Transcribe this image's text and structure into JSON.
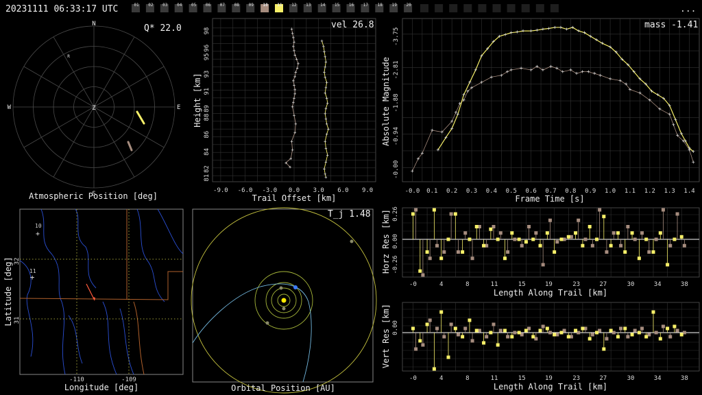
{
  "header": {
    "datetime": "20231111 06:33:17 UTC",
    "menu_label": "...",
    "cam_labels": [
      "01",
      "02",
      "03",
      "04",
      "05",
      "06",
      "07",
      "08",
      "09",
      "10",
      "11",
      "12",
      "13",
      "14",
      "15",
      "16",
      "17",
      "18",
      "19",
      "20"
    ],
    "active_cams": [
      "10",
      "11"
    ],
    "empty_slots": 10
  },
  "colors": {
    "cam10": "#a68c7e",
    "cam11": "#f7f069",
    "grid": "#333333",
    "orbit_inner": "#a8b83a",
    "orbit_outer": "#c7c43f",
    "comet_orbit": "#73b8df",
    "sun": "#ffea00",
    "earth": "#3a79ff"
  },
  "sky": {
    "quality_label": "Q* 22.0",
    "compass": [
      "N",
      "E",
      "S",
      "W",
      "Z"
    ],
    "station_marker": "R",
    "xlabel": "Atmospheric Position [deg]"
  },
  "trail": {
    "vel_label": "vel 26.8",
    "xlabel": "Trail Offset [km]",
    "ylabel": "Height [km]",
    "xticks": [
      "-9.0",
      "-6.0",
      "-3.0",
      "0.0",
      "3.0",
      "6.0",
      "9.0"
    ],
    "yticks": [
      "81",
      "82",
      "84",
      "86",
      "88",
      "89",
      "91",
      "93",
      "95",
      "96",
      "98"
    ],
    "cam10_x": [
      -0.3,
      -0.2,
      -0.1,
      0.0,
      -0.1,
      0.0,
      0.1,
      0.3,
      0.5,
      0.4,
      0.2,
      0.1,
      -0.1,
      0.0,
      0.1,
      0.1,
      0.0,
      -0.1,
      -0.2,
      0.0,
      0.2,
      0.1,
      -0.3,
      -0.2,
      -0.4,
      -1.0,
      -0.5
    ],
    "cam10_h": [
      98.0,
      97.5,
      97.0,
      96.5,
      96.0,
      95.5,
      95.0,
      94.5,
      94.0,
      93.5,
      93.0,
      92.5,
      92.0,
      91.5,
      91.0,
      90.5,
      90.0,
      89.5,
      89.0,
      88.0,
      87.0,
      86.0,
      85.0,
      84.0,
      83.0,
      82.5,
      82.0
    ],
    "cam11_x": [
      3.4,
      3.6,
      3.7,
      3.8,
      3.9,
      3.8,
      3.7,
      3.8,
      4.0,
      3.9,
      3.8,
      4.0,
      4.1,
      3.9,
      3.8,
      3.9,
      4.0,
      4.2,
      4.0,
      3.8,
      3.9,
      4.1,
      3.9,
      3.7,
      3.8,
      3.9
    ],
    "cam11_h": [
      96.6,
      96.0,
      95.4,
      94.8,
      94.2,
      93.6,
      93.0,
      92.4,
      91.8,
      91.2,
      90.6,
      90.0,
      89.4,
      88.8,
      88.2,
      87.6,
      87.0,
      86.4,
      85.8,
      85.0,
      84.2,
      83.4,
      82.6,
      81.8,
      81.2,
      80.8
    ]
  },
  "lightcurve": {
    "mass_label": "mass -1.41",
    "xlabel": "Frame Time [s]",
    "ylabel": "Absolute Magnitude",
    "xticks": [
      "-0.0",
      "0.1",
      "0.2",
      "0.3",
      "0.4",
      "0.5",
      "0.6",
      "0.7",
      "0.8",
      "0.9",
      "1.0",
      "1.1",
      "1.2",
      "1.3",
      "1.4"
    ],
    "yticks": [
      "-3.75",
      "-2.81",
      "-1.88",
      "-0.94",
      "-0.00"
    ],
    "cam10": [
      [
        0.0,
        -0.1
      ],
      [
        0.03,
        0.25
      ],
      [
        0.05,
        0.4
      ],
      [
        0.1,
        1.05
      ],
      [
        0.15,
        1.0
      ],
      [
        0.2,
        1.3
      ],
      [
        0.22,
        1.55
      ],
      [
        0.24,
        1.8
      ],
      [
        0.26,
        1.9
      ],
      [
        0.28,
        2.15
      ],
      [
        0.3,
        2.25
      ],
      [
        0.35,
        2.4
      ],
      [
        0.4,
        2.55
      ],
      [
        0.45,
        2.6
      ],
      [
        0.48,
        2.7
      ],
      [
        0.5,
        2.75
      ],
      [
        0.55,
        2.8
      ],
      [
        0.6,
        2.75
      ],
      [
        0.63,
        2.85
      ],
      [
        0.66,
        2.75
      ],
      [
        0.7,
        2.85
      ],
      [
        0.73,
        2.8
      ],
      [
        0.76,
        2.7
      ],
      [
        0.8,
        2.75
      ],
      [
        0.83,
        2.65
      ],
      [
        0.86,
        2.7
      ],
      [
        0.89,
        2.7
      ],
      [
        0.92,
        2.65
      ],
      [
        0.95,
        2.6
      ],
      [
        1.0,
        2.5
      ],
      [
        1.05,
        2.45
      ],
      [
        1.08,
        2.35
      ],
      [
        1.1,
        2.2
      ],
      [
        1.15,
        2.1
      ],
      [
        1.2,
        1.9
      ],
      [
        1.25,
        1.65
      ],
      [
        1.3,
        1.5
      ],
      [
        1.32,
        1.2
      ],
      [
        1.34,
        0.9
      ],
      [
        1.37,
        0.75
      ],
      [
        1.4,
        0.5
      ],
      [
        1.42,
        0.15
      ]
    ],
    "cam11": [
      [
        0.13,
        0.5
      ],
      [
        0.17,
        0.85
      ],
      [
        0.2,
        1.1
      ],
      [
        0.23,
        1.5
      ],
      [
        0.26,
        2.05
      ],
      [
        0.29,
        2.4
      ],
      [
        0.32,
        2.75
      ],
      [
        0.35,
        3.15
      ],
      [
        0.38,
        3.35
      ],
      [
        0.41,
        3.55
      ],
      [
        0.44,
        3.7
      ],
      [
        0.47,
        3.75
      ],
      [
        0.5,
        3.8
      ],
      [
        0.53,
        3.82
      ],
      [
        0.56,
        3.85
      ],
      [
        0.6,
        3.85
      ],
      [
        0.63,
        3.87
      ],
      [
        0.66,
        3.9
      ],
      [
        0.69,
        3.92
      ],
      [
        0.72,
        3.95
      ],
      [
        0.75,
        3.95
      ],
      [
        0.78,
        3.9
      ],
      [
        0.81,
        3.95
      ],
      [
        0.84,
        3.85
      ],
      [
        0.87,
        3.8
      ],
      [
        0.9,
        3.7
      ],
      [
        0.93,
        3.6
      ],
      [
        0.96,
        3.5
      ],
      [
        1.0,
        3.4
      ],
      [
        1.03,
        3.25
      ],
      [
        1.06,
        3.05
      ],
      [
        1.09,
        2.9
      ],
      [
        1.12,
        2.7
      ],
      [
        1.15,
        2.5
      ],
      [
        1.18,
        2.35
      ],
      [
        1.21,
        2.15
      ],
      [
        1.24,
        2.05
      ],
      [
        1.27,
        1.95
      ],
      [
        1.3,
        1.75
      ],
      [
        1.33,
        1.35
      ],
      [
        1.36,
        0.95
      ],
      [
        1.38,
        0.75
      ],
      [
        1.4,
        0.55
      ],
      [
        1.42,
        0.45
      ]
    ]
  },
  "horz_res": {
    "xlabel": "Length Along Trail [km]",
    "ylabel": "Horz Res [km]",
    "xticks": [
      "-0",
      "4",
      "8",
      "11",
      "15",
      "19",
      "23",
      "27",
      "30",
      "34",
      "38"
    ],
    "yticks": [
      "0.26",
      "0.00",
      "-0.26"
    ],
    "cam10": [
      [
        0,
        0.25
      ],
      [
        1,
        -0.4
      ],
      [
        2,
        -0.15
      ],
      [
        3,
        -0.05
      ],
      [
        4,
        -0.1
      ],
      [
        5,
        0.2
      ],
      [
        6,
        -0.1
      ],
      [
        7,
        0.05
      ],
      [
        8,
        -0.15
      ],
      [
        9,
        0.1
      ],
      [
        10,
        -0.05
      ],
      [
        11,
        0.1
      ],
      [
        12,
        0.05
      ],
      [
        13,
        -0.1
      ],
      [
        14,
        0.0
      ],
      [
        15,
        -0.05
      ],
      [
        16,
        0.1
      ],
      [
        17,
        0.05
      ],
      [
        18,
        -0.2
      ],
      [
        19,
        0.15
      ],
      [
        20,
        -0.02
      ],
      [
        21,
        0.0
      ],
      [
        22,
        0.02
      ],
      [
        23,
        0.15
      ],
      [
        24,
        0.0
      ],
      [
        25,
        -0.05
      ],
      [
        26,
        0.25
      ],
      [
        27,
        -0.1
      ],
      [
        28,
        0.05
      ],
      [
        29,
        -0.05
      ],
      [
        30,
        0.1
      ],
      [
        31,
        0.0
      ],
      [
        32,
        0.05
      ],
      [
        33,
        -0.1
      ],
      [
        34,
        0.0
      ],
      [
        35,
        0.3
      ],
      [
        36,
        -0.05
      ],
      [
        37,
        0.2
      ],
      [
        38,
        -0.05
      ]
    ],
    "cam11": [
      [
        0,
        0.2
      ],
      [
        1,
        -0.25
      ],
      [
        2,
        -0.1
      ],
      [
        3,
        0.28
      ],
      [
        4,
        -0.15
      ],
      [
        5,
        0.0
      ],
      [
        6,
        0.2
      ],
      [
        7,
        -0.1
      ],
      [
        8,
        0.0
      ],
      [
        9,
        0.1
      ],
      [
        10,
        -0.05
      ],
      [
        11,
        0.08
      ],
      [
        12,
        0.0
      ],
      [
        13,
        -0.15
      ],
      [
        14,
        0.05
      ],
      [
        15,
        0.0
      ],
      [
        16,
        -0.02
      ],
      [
        17,
        0.0
      ],
      [
        18,
        -0.05
      ],
      [
        19,
        0.05
      ],
      [
        20,
        -0.1
      ],
      [
        21,
        0.0
      ],
      [
        22,
        0.02
      ],
      [
        23,
        0.05
      ],
      [
        24,
        -0.05
      ],
      [
        25,
        0.1
      ],
      [
        26,
        0.0
      ],
      [
        27,
        0.18
      ],
      [
        28,
        -0.05
      ],
      [
        29,
        0.05
      ],
      [
        30,
        -0.1
      ],
      [
        31,
        0.05
      ],
      [
        32,
        -0.15
      ],
      [
        33,
        0.0
      ],
      [
        34,
        -0.1
      ],
      [
        35,
        0.05
      ],
      [
        36,
        -0.2
      ],
      [
        37,
        0.0
      ],
      [
        38,
        0.02
      ]
    ]
  },
  "vert_res": {
    "xlabel": "Length Along Trail [km]",
    "ylabel": "Vert Res [km]",
    "xticks": [
      "-0",
      "4",
      "8",
      "11",
      "15",
      "19",
      "23",
      "27",
      "30",
      "34",
      "38"
    ],
    "yticks": [
      "0.00"
    ],
    "cam10": [
      [
        0,
        -0.4
      ],
      [
        1,
        -0.3
      ],
      [
        2,
        0.3
      ],
      [
        3,
        0.1
      ],
      [
        4,
        -0.1
      ],
      [
        5,
        0.2
      ],
      [
        6,
        -0.05
      ],
      [
        7,
        0.1
      ],
      [
        8,
        -0.2
      ],
      [
        9,
        0.05
      ],
      [
        10,
        -0.1
      ],
      [
        11,
        0.2
      ],
      [
        12,
        0.05
      ],
      [
        13,
        -0.1
      ],
      [
        14,
        0.0
      ],
      [
        15,
        -0.05
      ],
      [
        16,
        0.1
      ],
      [
        17,
        -0.15
      ],
      [
        18,
        0.15
      ],
      [
        19,
        0.0
      ],
      [
        20,
        -0.05
      ],
      [
        21,
        0.05
      ],
      [
        22,
        -0.1
      ],
      [
        23,
        0.0
      ],
      [
        24,
        0.1
      ],
      [
        25,
        -0.05
      ],
      [
        26,
        0.05
      ],
      [
        27,
        -0.15
      ],
      [
        28,
        0.0
      ],
      [
        29,
        0.1
      ],
      [
        30,
        -0.1
      ],
      [
        31,
        0.05
      ],
      [
        32,
        0.1
      ],
      [
        33,
        -0.05
      ],
      [
        34,
        0.0
      ],
      [
        35,
        0.15
      ],
      [
        36,
        -0.1
      ],
      [
        37,
        0.05
      ],
      [
        38,
        0.0
      ]
    ],
    "cam11": [
      [
        0,
        0.1
      ],
      [
        1,
        -0.2
      ],
      [
        2,
        0.2
      ],
      [
        3,
        -0.9
      ],
      [
        4,
        0.5
      ],
      [
        5,
        -0.6
      ],
      [
        6,
        0.1
      ],
      [
        7,
        -0.1
      ],
      [
        8,
        0.3
      ],
      [
        9,
        0.05
      ],
      [
        10,
        -0.25
      ],
      [
        11,
        0.0
      ],
      [
        12,
        -0.3
      ],
      [
        13,
        0.05
      ],
      [
        14,
        -0.1
      ],
      [
        15,
        0.0
      ],
      [
        16,
        0.05
      ],
      [
        17,
        -0.1
      ],
      [
        18,
        0.05
      ],
      [
        19,
        0.1
      ],
      [
        20,
        -0.05
      ],
      [
        21,
        0.0
      ],
      [
        22,
        -0.1
      ],
      [
        23,
        0.05
      ],
      [
        24,
        0.1
      ],
      [
        25,
        -0.15
      ],
      [
        26,
        0.0
      ],
      [
        27,
        -0.4
      ],
      [
        28,
        0.05
      ],
      [
        29,
        -0.1
      ],
      [
        30,
        0.1
      ],
      [
        31,
        -0.05
      ],
      [
        32,
        0.0
      ],
      [
        33,
        -0.1
      ],
      [
        34,
        0.5
      ],
      [
        35,
        -0.15
      ],
      [
        36,
        0.1
      ],
      [
        37,
        0.15
      ],
      [
        38,
        -0.05
      ]
    ]
  },
  "map": {
    "xlabel": "Longitude [deg]",
    "ylabel": "Latitude [deg]",
    "xticks": [
      "-110",
      "-109"
    ],
    "yticks": [
      "32",
      "31"
    ],
    "station_labels": [
      "10",
      "11"
    ]
  },
  "orbit": {
    "tj_label": "T_j 1.48",
    "xlabel": "Orbital Position [AU]"
  }
}
